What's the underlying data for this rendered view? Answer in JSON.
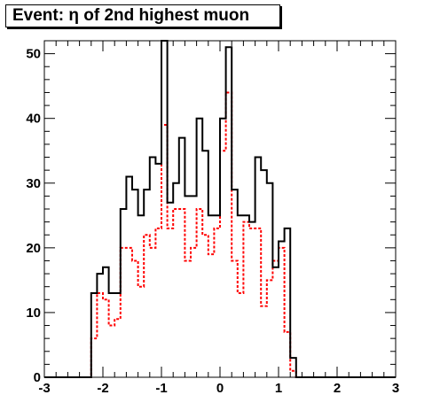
{
  "chart_data": {
    "type": "step-histogram",
    "title": "Event: η of 2nd highest muon",
    "xlabel": "",
    "ylabel": "",
    "xlim": [
      -3,
      3
    ],
    "ylim": [
      0,
      52
    ],
    "x_ticks": [
      "-3",
      "-2",
      "-1",
      "0",
      "1",
      "2",
      "3"
    ],
    "y_ticks": [
      "0",
      "10",
      "20",
      "30",
      "40",
      "50"
    ],
    "bin_edges_start": -3,
    "bin_width": 0.1,
    "series": [
      {
        "style": "solid",
        "color": "#000000",
        "values": [
          0,
          0,
          0,
          0,
          0,
          0,
          0,
          0,
          13,
          16,
          17,
          13,
          13,
          26,
          31,
          29,
          25,
          29,
          34,
          33,
          52,
          27,
          30,
          37,
          28,
          28,
          40,
          35,
          25,
          25,
          40,
          51,
          29,
          25,
          25,
          24,
          34,
          32,
          30,
          17,
          21,
          23,
          3,
          0,
          0,
          0,
          0,
          0,
          0,
          0,
          0,
          0,
          0,
          0,
          0,
          0,
          0,
          0,
          0,
          0
        ]
      },
      {
        "style": "dashed",
        "color": "#ff0000",
        "values": [
          0,
          0,
          0,
          0,
          0,
          0,
          0,
          0,
          6,
          13,
          12,
          8,
          9,
          20,
          20,
          18,
          14,
          22,
          20,
          23,
          39,
          23,
          26,
          26,
          18,
          20,
          26,
          22,
          19,
          23,
          35,
          44,
          18,
          13,
          24,
          23,
          23,
          11,
          15,
          18,
          20,
          7,
          1,
          0,
          0,
          0,
          0,
          0,
          0,
          0,
          0,
          0,
          0,
          0,
          0,
          0,
          0,
          0,
          0,
          0
        ]
      }
    ]
  }
}
